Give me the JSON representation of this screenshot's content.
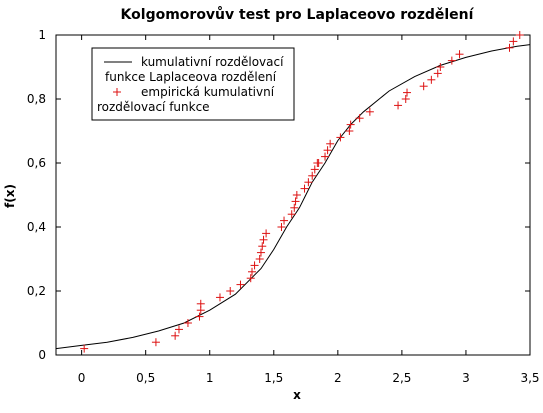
{
  "chart_data": {
    "type": "line",
    "title": "Kolgomorovův test pro Laplaceovo rozdělení",
    "xlabel": "x",
    "ylabel": "f(x)",
    "xlim": [
      -0.2,
      3.5
    ],
    "ylim": [
      0,
      1
    ],
    "x_ticks": [
      0,
      0.5,
      1,
      1.5,
      2,
      2.5,
      3,
      3.5
    ],
    "x_tick_labels": [
      "0",
      "0,5",
      "1",
      "1,5",
      "2",
      "2,5",
      "3",
      "3,5"
    ],
    "y_ticks": [
      0,
      0.2,
      0.4,
      0.6,
      0.8,
      1
    ],
    "y_tick_labels": [
      "0",
      "0,2",
      "0,4",
      "0,6",
      "0,8",
      "1"
    ],
    "grid": false,
    "legend_position": "top-left",
    "legend": [
      {
        "label_lines": [
          "kumulativní rozdělovací",
          "funkce Laplaceova rozdělení"
        ],
        "style": "line"
      },
      {
        "label_lines": [
          "empirická kumulativní",
          "rozdělovací funkce"
        ],
        "style": "marker"
      }
    ],
    "series": [
      {
        "name": "kumulativní rozdělovací funkce Laplaceova rozdělení",
        "kind": "line",
        "color": "#000000",
        "x": [
          -0.2,
          0.0,
          0.2,
          0.4,
          0.6,
          0.8,
          1.0,
          1.2,
          1.4,
          1.5,
          1.6,
          1.7,
          1.75,
          1.8,
          1.9,
          2.0,
          2.1,
          2.2,
          2.4,
          2.6,
          2.8,
          3.0,
          3.2,
          3.4,
          3.5
        ],
        "y": [
          0.02,
          0.03,
          0.04,
          0.055,
          0.075,
          0.1,
          0.14,
          0.19,
          0.27,
          0.33,
          0.4,
          0.46,
          0.5,
          0.54,
          0.6,
          0.67,
          0.72,
          0.76,
          0.825,
          0.87,
          0.905,
          0.93,
          0.95,
          0.965,
          0.97
        ]
      },
      {
        "name": "empirická kumulativní rozdělovací funkce",
        "kind": "scatter",
        "marker": "plus",
        "color": "#dd1111",
        "x": [
          0.02,
          0.58,
          0.73,
          0.76,
          0.83,
          0.92,
          0.93,
          0.93,
          1.08,
          1.16,
          1.24,
          1.32,
          1.33,
          1.35,
          1.39,
          1.4,
          1.41,
          1.42,
          1.44,
          1.56,
          1.58,
          1.64,
          1.66,
          1.67,
          1.68,
          1.74,
          1.77,
          1.8,
          1.82,
          1.84,
          1.85,
          1.9,
          1.92,
          1.94,
          2.02,
          2.09,
          2.1,
          2.17,
          2.25,
          2.47,
          2.53,
          2.54,
          2.67,
          2.73,
          2.78,
          2.8,
          2.89,
          2.95,
          3.34,
          3.37,
          3.42
        ],
        "y": [
          0.02,
          0.04,
          0.06,
          0.08,
          0.1,
          0.12,
          0.14,
          0.16,
          0.18,
          0.2,
          0.22,
          0.24,
          0.26,
          0.28,
          0.3,
          0.32,
          0.34,
          0.36,
          0.38,
          0.4,
          0.42,
          0.44,
          0.46,
          0.48,
          0.5,
          0.52,
          0.54,
          0.56,
          0.58,
          0.6,
          0.6,
          0.62,
          0.64,
          0.66,
          0.68,
          0.7,
          0.72,
          0.74,
          0.76,
          0.78,
          0.8,
          0.82,
          0.84,
          0.86,
          0.88,
          0.9,
          0.92,
          0.94,
          0.96,
          0.98,
          1.0
        ]
      }
    ]
  }
}
